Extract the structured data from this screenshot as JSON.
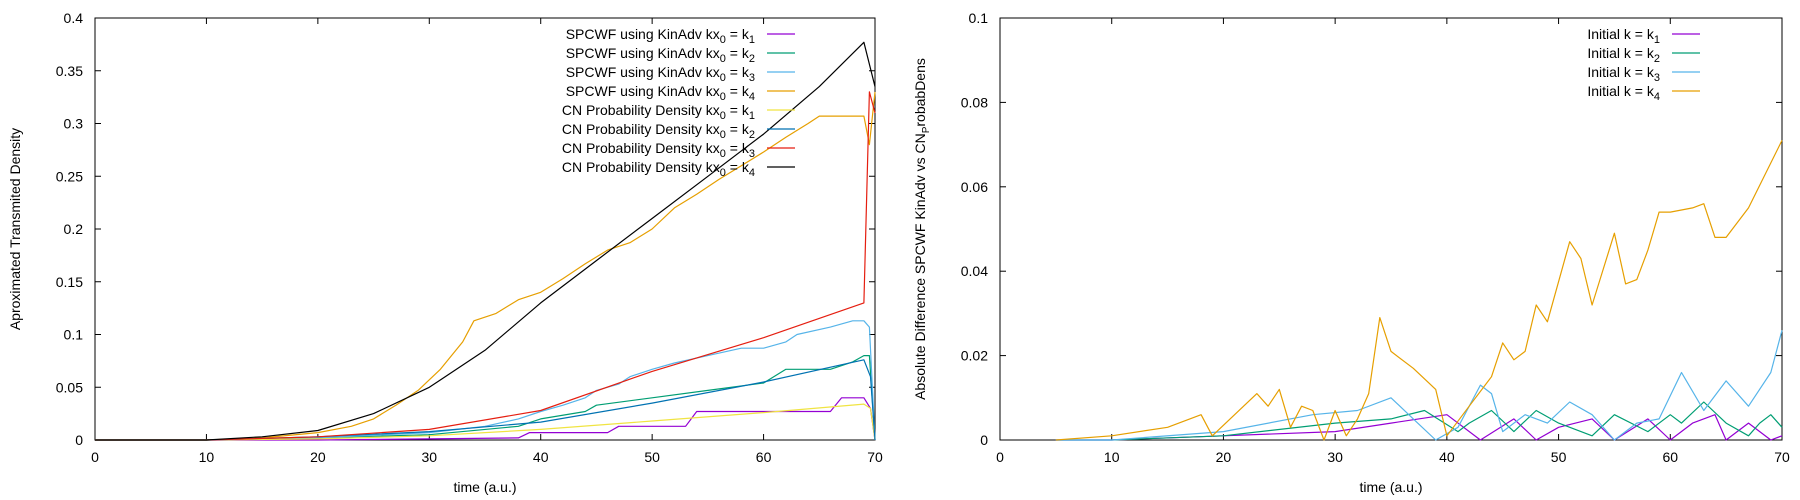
{
  "chart_data": [
    {
      "type": "line",
      "title": "",
      "xlabel": "time (a.u.)",
      "ylabel": "Aproximated Transmited Density",
      "xlim": [
        0,
        70
      ],
      "ylim": [
        0,
        0.4
      ],
      "xticks": [
        0,
        10,
        20,
        30,
        40,
        50,
        60,
        70
      ],
      "yticks": [
        0,
        0.05,
        0.1,
        0.15,
        0.2,
        0.25,
        0.3,
        0.35,
        0.4
      ],
      "yticklabels": [
        "0",
        "0.05",
        "0.1",
        "0.15",
        "0.2",
        "0.25",
        "0.3",
        "0.35",
        "0.4"
      ],
      "legend_position": "top-right",
      "grid": false,
      "series": [
        {
          "name": "SPCWF using KinAdv kx0 = k1",
          "legend": {
            "pre": "SPCWF using KinAdv kx",
            "sub1": "0",
            "mid": " = k",
            "sub2": "1"
          },
          "color": "#9400d3",
          "x": [
            0,
            10,
            20,
            30,
            38,
            39,
            46,
            47,
            53,
            54,
            60,
            61,
            66,
            67,
            69,
            69.6,
            70
          ],
          "y": [
            0,
            0,
            0,
            0.001,
            0.002,
            0.007,
            0.007,
            0.013,
            0.013,
            0.027,
            0.027,
            0.027,
            0.027,
            0.04,
            0.04,
            0.03,
            0.0
          ]
        },
        {
          "name": "SPCWF using KinAdv kx0 = k2",
          "legend": {
            "pre": "SPCWF using KinAdv kx",
            "sub1": "0",
            "mid": " = k",
            "sub2": "2"
          },
          "color": "#009e73",
          "x": [
            0,
            10,
            20,
            30,
            38,
            40,
            44,
            45,
            50,
            55,
            60,
            62,
            66,
            68,
            69,
            69.5,
            70
          ],
          "y": [
            0,
            0,
            0.002,
            0.005,
            0.013,
            0.02,
            0.027,
            0.033,
            0.04,
            0.047,
            0.054,
            0.067,
            0.067,
            0.074,
            0.08,
            0.08,
            0.0
          ]
        },
        {
          "name": "SPCWF using KinAdv kx0 = k3",
          "legend": {
            "pre": "SPCWF using KinAdv kx",
            "sub1": "0",
            "mid": " = k",
            "sub2": "3"
          },
          "color": "#56b4e9",
          "x": [
            0,
            10,
            20,
            30,
            35,
            38,
            40,
            42,
            44,
            45,
            47,
            48,
            50,
            52,
            55,
            58,
            60,
            62,
            63,
            66,
            68,
            69,
            69.5,
            70
          ],
          "y": [
            0,
            0,
            0.002,
            0.007,
            0.013,
            0.02,
            0.027,
            0.033,
            0.04,
            0.047,
            0.053,
            0.06,
            0.067,
            0.073,
            0.08,
            0.087,
            0.087,
            0.093,
            0.1,
            0.107,
            0.113,
            0.113,
            0.107,
            0.0
          ]
        },
        {
          "name": "SPCWF using KinAdv kx0 = k4",
          "legend": {
            "pre": "SPCWF using KinAdv kx",
            "sub1": "0",
            "mid": " = k",
            "sub2": "4"
          },
          "color": "#e69f00",
          "x": [
            0,
            10,
            15,
            20,
            23,
            25,
            27,
            29,
            31,
            33,
            34,
            36,
            38,
            40,
            42,
            44,
            46,
            48,
            50,
            52,
            54,
            56,
            58,
            60,
            62,
            64,
            65,
            67,
            69,
            69.5,
            70
          ],
          "y": [
            0,
            0,
            0.002,
            0.007,
            0.013,
            0.02,
            0.033,
            0.047,
            0.067,
            0.093,
            0.113,
            0.12,
            0.133,
            0.14,
            0.153,
            0.167,
            0.18,
            0.187,
            0.2,
            0.22,
            0.233,
            0.247,
            0.26,
            0.273,
            0.287,
            0.3,
            0.307,
            0.307,
            0.307,
            0.28,
            0.33
          ]
        },
        {
          "name": "CN Probability Density kx0 = k1",
          "legend": {
            "pre": "CN Probability Density kx",
            "sub1": "0",
            "mid": " = k",
            "sub2": "1"
          },
          "color": "#f0e442",
          "x": [
            0,
            10,
            20,
            30,
            40,
            50,
            60,
            69,
            69.6,
            70
          ],
          "y": [
            0,
            0,
            0.001,
            0.004,
            0.01,
            0.018,
            0.026,
            0.034,
            0.03,
            0.0
          ]
        },
        {
          "name": "CN Probability Density kx0 = k2",
          "legend": {
            "pre": "CN Probability Density kx",
            "sub1": "0",
            "mid": " = k",
            "sub2": "2"
          },
          "color": "#0072b2",
          "x": [
            0,
            10,
            20,
            30,
            40,
            50,
            60,
            69,
            69.6,
            70
          ],
          "y": [
            0,
            0,
            0.003,
            0.008,
            0.017,
            0.035,
            0.055,
            0.076,
            0.06,
            0.0
          ]
        },
        {
          "name": "CN Probability Density kx0 = k3",
          "legend": {
            "pre": "CN Probability Density kx",
            "sub1": "0",
            "mid": " = k",
            "sub2": "3"
          },
          "color": "#e51e10",
          "x": [
            0,
            10,
            20,
            30,
            40,
            50,
            60,
            69,
            69.5,
            70
          ],
          "y": [
            0,
            0,
            0.003,
            0.01,
            0.028,
            0.065,
            0.097,
            0.13,
            0.33,
            0.31
          ]
        },
        {
          "name": "CN Probability Density kx0 = k4",
          "legend": {
            "pre": "CN Probability Density kx",
            "sub1": "0",
            "mid": " = k",
            "sub2": "4"
          },
          "color": "#000000",
          "x": [
            0,
            10,
            15,
            20,
            25,
            30,
            35,
            40,
            45,
            50,
            55,
            60,
            65,
            69,
            70
          ],
          "y": [
            0,
            0,
            0.003,
            0.009,
            0.025,
            0.05,
            0.085,
            0.13,
            0.17,
            0.21,
            0.25,
            0.29,
            0.335,
            0.377,
            0.335
          ]
        }
      ]
    },
    {
      "type": "line",
      "title": "",
      "xlabel": "time (a.u.)",
      "ylabel": "Absolute Difference SPCWF KinAdv vs CNprobabDens",
      "ylabel_parts": {
        "pre": "Absolute Difference SPCWF KinAdv vs CN",
        "sub": "P",
        "post": "robabDens"
      },
      "xlim": [
        0,
        70
      ],
      "ylim": [
        0,
        0.1
      ],
      "xticks": [
        0,
        10,
        20,
        30,
        40,
        50,
        60,
        70
      ],
      "yticks": [
        0,
        0.02,
        0.04,
        0.06,
        0.08,
        0.1
      ],
      "yticklabels": [
        "0",
        "0.02",
        "0.04",
        "0.06",
        "0.08",
        "0.1"
      ],
      "legend_position": "top-right",
      "grid": false,
      "series": [
        {
          "name": "Initial k = k1",
          "legend": {
            "pre": "Initial k = k",
            "sub1": "",
            "mid": "",
            "sub2": "1"
          },
          "color": "#9400d3",
          "x": [
            5,
            10,
            20,
            30,
            35,
            40,
            43,
            46,
            48,
            50,
            53,
            55,
            58,
            60,
            62,
            64,
            65,
            67,
            69,
            70
          ],
          "y": [
            0,
            0,
            0.001,
            0.002,
            0.004,
            0.006,
            0.0,
            0.005,
            0.0,
            0.003,
            0.005,
            0.0,
            0.005,
            0.0,
            0.004,
            0.006,
            0.0,
            0.004,
            0.0,
            0.001
          ]
        },
        {
          "name": "Initial k = k2",
          "legend": {
            "pre": "Initial k = k",
            "sub1": "",
            "mid": "",
            "sub2": "2"
          },
          "color": "#009e73",
          "x": [
            5,
            10,
            20,
            30,
            35,
            38,
            41,
            42,
            44,
            46,
            48,
            50,
            53,
            55,
            58,
            60,
            61,
            63,
            65,
            67,
            68,
            69,
            70
          ],
          "y": [
            0,
            0,
            0.001,
            0.004,
            0.005,
            0.007,
            0.002,
            0.004,
            0.007,
            0.002,
            0.007,
            0.004,
            0.001,
            0.006,
            0.002,
            0.006,
            0.004,
            0.009,
            0.004,
            0.001,
            0.004,
            0.006,
            0.003
          ]
        },
        {
          "name": "Initial k = k3",
          "legend": {
            "pre": "Initial k = k",
            "sub1": "",
            "mid": "",
            "sub2": "3"
          },
          "color": "#56b4e9",
          "x": [
            5,
            10,
            20,
            28,
            32,
            35,
            37,
            39,
            41,
            43,
            44,
            45,
            47,
            49,
            51,
            53,
            55,
            57,
            59,
            61,
            63,
            65,
            67,
            69,
            70
          ],
          "y": [
            0,
            0,
            0.002,
            0.006,
            0.007,
            0.01,
            0.005,
            0.0,
            0.003,
            0.013,
            0.011,
            0.002,
            0.006,
            0.004,
            0.009,
            0.006,
            0.0,
            0.004,
            0.005,
            0.016,
            0.007,
            0.014,
            0.008,
            0.016,
            0.026
          ]
        },
        {
          "name": "Initial k = k4",
          "legend": {
            "pre": "Initial k = k",
            "sub1": "",
            "mid": "",
            "sub2": "4"
          },
          "color": "#e69f00",
          "x": [
            5,
            10,
            15,
            18,
            19,
            21,
            23,
            24,
            25,
            26,
            27,
            28,
            29,
            30,
            31,
            32,
            33,
            34,
            35,
            37,
            39,
            40,
            42,
            44,
            45,
            46,
            47,
            48,
            49,
            51,
            52,
            53,
            55,
            56,
            57,
            58,
            59,
            60,
            62,
            63,
            64,
            65,
            67,
            70
          ],
          "y": [
            0,
            0.001,
            0.003,
            0.006,
            0.001,
            0.006,
            0.011,
            0.008,
            0.012,
            0.003,
            0.008,
            0.007,
            0.0,
            0.007,
            0.001,
            0.005,
            0.011,
            0.029,
            0.021,
            0.017,
            0.012,
            0.001,
            0.008,
            0.015,
            0.023,
            0.019,
            0.021,
            0.032,
            0.028,
            0.047,
            0.043,
            0.032,
            0.049,
            0.037,
            0.038,
            0.045,
            0.054,
            0.054,
            0.055,
            0.056,
            0.048,
            0.048,
            0.055,
            0.071
          ]
        }
      ]
    }
  ]
}
